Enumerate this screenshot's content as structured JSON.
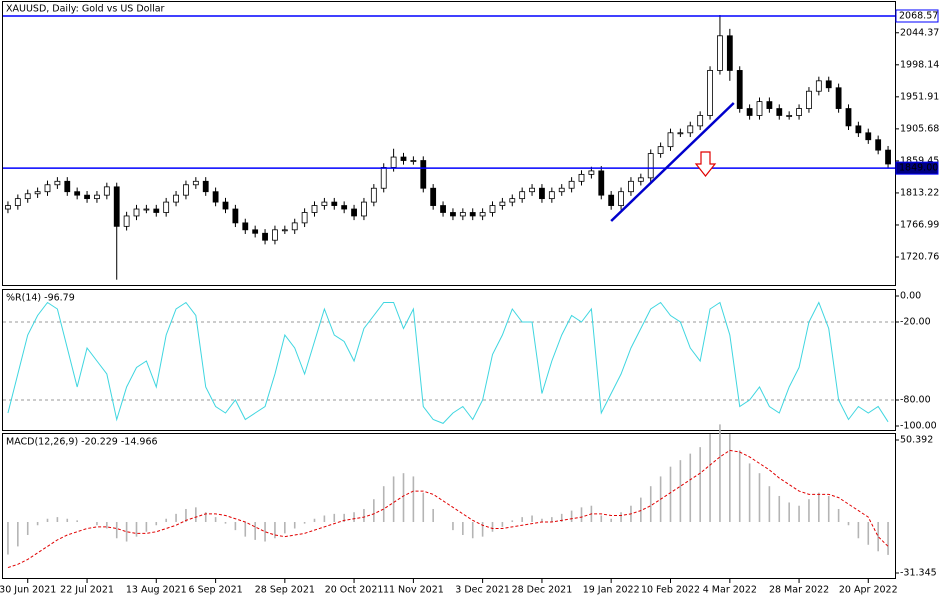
{
  "chart_data": [
    {
      "type": "candlestick",
      "title": "XAUUSD, Daily:  Gold vs US Dollar",
      "open": [
        1790,
        1795,
        1805,
        1812,
        1815,
        1825,
        1830,
        1815,
        1810,
        1805,
        1810,
        1822,
        1765,
        1780,
        1790,
        1790,
        1785,
        1800,
        1810,
        1825,
        1830,
        1815,
        1800,
        1790,
        1770,
        1760,
        1755,
        1745,
        1760,
        1760,
        1770,
        1785,
        1795,
        1800,
        1795,
        1790,
        1780,
        1800,
        1820,
        1850,
        1865,
        1860,
        1860,
        1820,
        1795,
        1785,
        1780,
        1785,
        1780,
        1785,
        1795,
        1800,
        1805,
        1815,
        1820,
        1805,
        1815,
        1820,
        1830,
        1840,
        1845,
        1810,
        1795,
        1815,
        1830,
        1835,
        1870,
        1880,
        1900,
        1900,
        1910,
        1925,
        1990,
        2040,
        1990,
        1935,
        1925,
        1945,
        1935,
        1925,
        1925,
        1935,
        1960,
        1975,
        1965,
        1935,
        1910,
        1900,
        1890,
        1875
      ],
      "high": [
        1801,
        1811,
        1818,
        1821,
        1831,
        1836,
        1836,
        1821,
        1816,
        1816,
        1828,
        1828,
        1786,
        1796,
        1796,
        1796,
        1806,
        1816,
        1831,
        1836,
        1836,
        1821,
        1806,
        1796,
        1776,
        1766,
        1761,
        1766,
        1766,
        1776,
        1791,
        1801,
        1806,
        1806,
        1801,
        1796,
        1806,
        1826,
        1856,
        1877,
        1871,
        1866,
        1866,
        1826,
        1801,
        1791,
        1791,
        1791,
        1791,
        1801,
        1806,
        1811,
        1821,
        1826,
        1826,
        1821,
        1826,
        1836,
        1846,
        1851,
        1852,
        1816,
        1821,
        1836,
        1841,
        1876,
        1886,
        1906,
        1906,
        1916,
        1931,
        1996,
        2070,
        2050,
        1996,
        1941,
        1951,
        1951,
        1941,
        1931,
        1941,
        1966,
        1981,
        1981,
        1971,
        1941,
        1916,
        1906,
        1896,
        1881
      ],
      "low": [
        1784,
        1789,
        1799,
        1806,
        1809,
        1819,
        1809,
        1804,
        1799,
        1799,
        1804,
        1688,
        1759,
        1774,
        1784,
        1779,
        1779,
        1794,
        1804,
        1819,
        1809,
        1794,
        1784,
        1764,
        1754,
        1749,
        1739,
        1739,
        1754,
        1754,
        1764,
        1779,
        1789,
        1789,
        1784,
        1774,
        1774,
        1794,
        1814,
        1844,
        1854,
        1854,
        1814,
        1789,
        1779,
        1774,
        1774,
        1774,
        1774,
        1779,
        1789,
        1794,
        1799,
        1809,
        1799,
        1799,
        1809,
        1814,
        1824,
        1834,
        1804,
        1789,
        1789,
        1809,
        1824,
        1829,
        1864,
        1874,
        1894,
        1894,
        1904,
        1919,
        1984,
        1975,
        1929,
        1919,
        1919,
        1929,
        1919,
        1919,
        1919,
        1929,
        1954,
        1959,
        1929,
        1904,
        1894,
        1884,
        1869,
        1849
      ],
      "close": [
        1795,
        1805,
        1812,
        1815,
        1825,
        1830,
        1815,
        1810,
        1805,
        1810,
        1822,
        1765,
        1780,
        1790,
        1790,
        1785,
        1800,
        1810,
        1825,
        1830,
        1815,
        1800,
        1790,
        1770,
        1760,
        1755,
        1745,
        1760,
        1760,
        1770,
        1785,
        1795,
        1800,
        1795,
        1790,
        1780,
        1800,
        1820,
        1850,
        1865,
        1860,
        1860,
        1820,
        1795,
        1785,
        1780,
        1785,
        1780,
        1785,
        1795,
        1800,
        1805,
        1815,
        1820,
        1805,
        1815,
        1820,
        1830,
        1840,
        1845,
        1810,
        1795,
        1815,
        1830,
        1835,
        1870,
        1880,
        1900,
        1900,
        1910,
        1925,
        1990,
        2040,
        1990,
        1935,
        1925,
        1945,
        1935,
        1925,
        1925,
        1935,
        1960,
        1975,
        1965,
        1935,
        1910,
        1900,
        1890,
        1875,
        1855
      ],
      "ylim": [
        1680.35,
        2088.77
      ],
      "yticks": [
        2044.37,
        1998.14,
        1951.91,
        1905.68,
        1859.45,
        1813.22,
        1766.99,
        1720.76
      ],
      "levels": [
        2068.57,
        {
          "value": 1849,
          "label": "1849.00"
        }
      ],
      "level_color": "#0000ff",
      "trendline": {
        "x": [
          61,
          73.4
        ],
        "y": [
          1772.7,
          1943
        ],
        "color": "#0000cc"
      }
    },
    {
      "type": "line",
      "label": "%R(14) -96.79",
      "color": "#3fd6e0",
      "values": [
        -90,
        -60,
        -30,
        -15,
        -5,
        -10,
        -40,
        -70,
        -40,
        -50,
        -60,
        -95,
        -70,
        -55,
        -50,
        -70,
        -30,
        -10,
        -5,
        -15,
        -70,
        -85,
        -90,
        -80,
        -95,
        -90,
        -85,
        -60,
        -30,
        -40,
        -60,
        -35,
        -10,
        -30,
        -35,
        -50,
        -25,
        -15,
        -5,
        -5,
        -25,
        -10,
        -85,
        -95,
        -98,
        -90,
        -85,
        -95,
        -80,
        -45,
        -30,
        -10,
        -20,
        -20,
        -75,
        -50,
        -30,
        -15,
        -20,
        -10,
        -90,
        -75,
        -60,
        -40,
        -25,
        -10,
        -5,
        -15,
        -20,
        -40,
        -50,
        -10,
        -5,
        -30,
        -85,
        -80,
        -70,
        -85,
        -90,
        -70,
        -55,
        -20,
        -5,
        -25,
        -80,
        -95,
        -85,
        -90,
        -85,
        -96.79
      ],
      "ylim": [
        -103.08,
        4.62
      ],
      "yticks": [
        {
          "value": 0,
          "label": "0.00"
        },
        {
          "value": -20,
          "label": "-20.00"
        },
        {
          "value": -80,
          "label": "-80.00"
        },
        {
          "value": -100,
          "label": "-100.00"
        }
      ],
      "level_lines": [
        -20,
        -80
      ]
    },
    {
      "type": "macd",
      "label": "MACD(12,26,9) -20.229 -14.966",
      "categories": [
        null,
        null,
        "30 Jun 2021",
        null,
        null,
        null,
        null,
        null,
        "22 Jul 2021",
        null,
        null,
        null,
        null,
        null,
        null,
        "13 Aug 2021",
        null,
        null,
        null,
        null,
        null,
        "6 Sep 2021",
        null,
        null,
        null,
        null,
        null,
        null,
        "28 Sep 2021",
        null,
        null,
        null,
        null,
        null,
        null,
        "20 Oct 2021",
        null,
        null,
        null,
        null,
        null,
        "11 Nov 2021",
        null,
        null,
        null,
        null,
        null,
        null,
        "3 Dec 2021",
        null,
        null,
        null,
        null,
        null,
        "28 Dec 2021",
        null,
        null,
        null,
        null,
        null,
        null,
        "19 Jan 2022",
        null,
        null,
        null,
        null,
        null,
        "10 Feb 2022",
        null,
        null,
        null,
        null,
        null,
        "4 Mar 2022",
        null,
        null,
        null,
        null,
        null,
        null,
        "28 Mar 2022",
        null,
        null,
        null,
        null,
        null,
        null,
        "20 Apr 2022",
        null,
        null
      ],
      "histogram": {
        "color": "#b4b4b4",
        "values": [
          -20,
          -15,
          -8,
          -2,
          2,
          3,
          2,
          1,
          0,
          -2,
          -4,
          -10,
          -12,
          -9,
          -6,
          -2,
          2,
          5,
          8,
          9,
          6,
          3,
          -1,
          -5,
          -9,
          -11,
          -12,
          -10,
          -7,
          -4,
          -1,
          2,
          4,
          5,
          5,
          6,
          8,
          14,
          22,
          28,
          30,
          28,
          18,
          8,
          0,
          -5,
          -8,
          -10,
          -9,
          -6,
          -3,
          1,
          3,
          4,
          2,
          3,
          5,
          7,
          9,
          10,
          4,
          2,
          6,
          10,
          15,
          22,
          28,
          34,
          38,
          42,
          46,
          54,
          60,
          54,
          44,
          36,
          30,
          22,
          16,
          12,
          10,
          14,
          18,
          16,
          8,
          -2,
          -10,
          -14,
          -18,
          -20.229
        ]
      },
      "signal": {
        "color": "#e00000",
        "values": [
          -28,
          -26,
          -23,
          -19,
          -15,
          -11,
          -8,
          -6,
          -4,
          -3,
          -3,
          -4,
          -6,
          -7,
          -7,
          -6,
          -4,
          -2,
          1,
          3,
          5,
          5,
          4,
          2,
          0,
          -3,
          -6,
          -8,
          -9,
          -8,
          -7,
          -5,
          -3,
          -1,
          1,
          2,
          3,
          5,
          8,
          12,
          16,
          19,
          19,
          17,
          13,
          9,
          5,
          1,
          -2,
          -4,
          -4,
          -3,
          -2,
          -1,
          0,
          0,
          1,
          2,
          3,
          5,
          5,
          4,
          4,
          5,
          7,
          10,
          14,
          18,
          22,
          26,
          30,
          35,
          40,
          44,
          43,
          40,
          36,
          32,
          27,
          23,
          19,
          17,
          17,
          17,
          15,
          11,
          7,
          3,
          -9,
          -14.966
        ]
      },
      "ylim": [
        -34.42,
        54.08
      ],
      "yticks": [
        50.392,
        -31.345
      ]
    }
  ]
}
